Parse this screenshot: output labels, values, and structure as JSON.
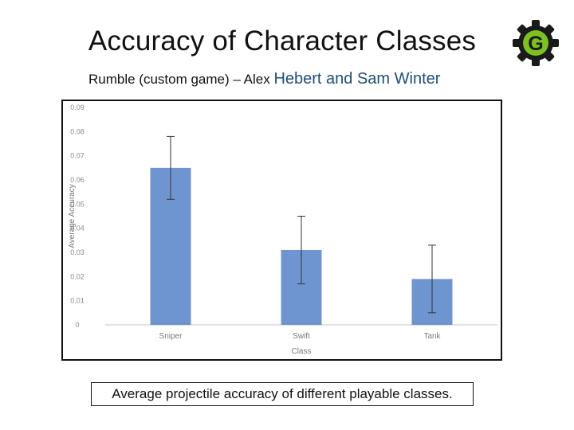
{
  "header": {
    "title": "Accuracy of Character Classes",
    "subtitle_part1": "Rumble (custom game) – Alex",
    "subtitle_part2": "Hebert  and Sam Winter"
  },
  "logo": {
    "icon": "gear-g-logo-icon",
    "letter": "G",
    "colors": {
      "gear": "#1a1a1a",
      "letter": "#7cc11f"
    }
  },
  "caption": "Average projectile accuracy of different playable classes.",
  "chart_data": {
    "type": "bar",
    "categories": [
      "Sniper",
      "Swift",
      "Tank"
    ],
    "values": [
      0.065,
      0.031,
      0.019
    ],
    "error_bars": [
      0.013,
      0.014,
      0.014
    ],
    "xlabel": "Class",
    "ylabel": "Average Accuracy",
    "ylim": [
      0,
      0.09
    ],
    "y_ticks": [
      "0",
      "0.01",
      "0.02",
      "0.03",
      "0.04",
      "0.05",
      "0.06",
      "0.07",
      "0.08",
      "0.09"
    ],
    "bar_color": "#6f95d0",
    "grid": false
  }
}
